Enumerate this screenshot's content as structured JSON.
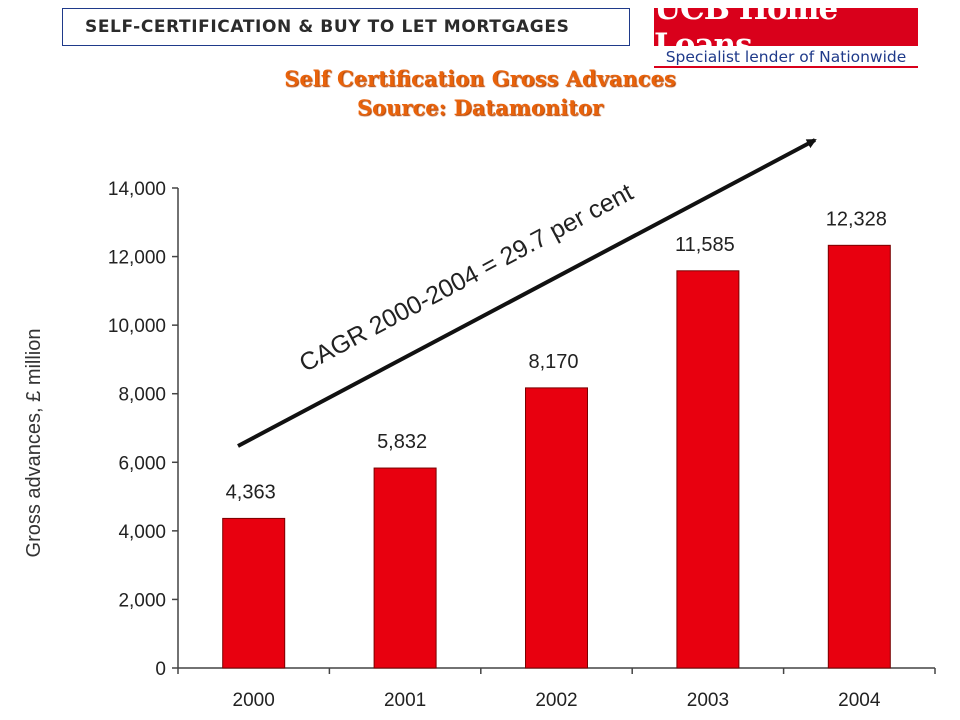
{
  "header": {
    "title": "SELF-CERTIFICATION & BUY TO LET MORTGAGES",
    "logo_name": "UCB Home Loans",
    "logo_tagline": "Specialist lender of Nationwide"
  },
  "colors": {
    "bar": "#e8000f",
    "title": "#e8620a",
    "logo_red": "#d9001b",
    "logo_blue": "#1f3a8a"
  },
  "chart_data": {
    "type": "bar",
    "title": "Self Certification Gross Advances",
    "subtitle": "Source: Datamonitor",
    "xlabel": "",
    "ylabel": "Gross advances, £ million",
    "categories": [
      "2000",
      "2001",
      "2002",
      "2003",
      "2004"
    ],
    "values": [
      4363,
      5832,
      8170,
      11585,
      12328
    ],
    "data_labels": [
      "4,363",
      "5,832",
      "8,170",
      "11,585",
      "12,328"
    ],
    "ylim": [
      0,
      14000
    ],
    "yticks": [
      0,
      2000,
      4000,
      6000,
      8000,
      10000,
      12000,
      14000
    ],
    "ytick_labels": [
      "0",
      "2,000",
      "4,000",
      "6,000",
      "8,000",
      "10,000",
      "12,000",
      "14,000"
    ],
    "annotation": "CAGR 2000-2004 = 29.7 per cent",
    "grid": false,
    "legend": "none"
  }
}
